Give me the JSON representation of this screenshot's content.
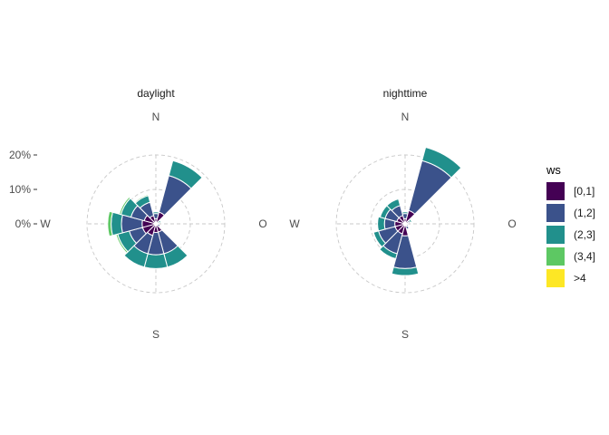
{
  "chart_data": {
    "type": "wind-rose (stacked polar bar)",
    "direction_labels": [
      "N",
      "O",
      "S",
      "W"
    ],
    "radial_ticks": [
      "0%",
      "10%",
      "20%"
    ],
    "radial_tick_values": [
      0,
      10,
      20
    ],
    "rmax": 20,
    "grid": "dashed polar",
    "legend": {
      "title": "ws",
      "position": "right",
      "entries": [
        "[0,1]",
        "(1,2]",
        "(2,3]",
        "(3,4]",
        ">4"
      ],
      "colors": [
        "#440154",
        "#3B528B",
        "#21908C",
        "#5DC863",
        "#FDE725"
      ]
    },
    "sector_centers_deg": [
      0,
      30,
      60,
      90,
      120,
      150,
      180,
      210,
      240,
      270,
      300,
      330
    ],
    "sector_width_deg": 30,
    "panels": [
      {
        "title": "daylight",
        "sectors": [
          [
            1.5,
            1.5,
            0.5,
            0,
            0
          ],
          [
            3.5,
            11.0,
            4.5,
            0,
            0
          ],
          [
            0.5,
            0.5,
            0.5,
            0,
            0
          ],
          [
            0.3,
            0.5,
            0,
            0,
            0
          ],
          [
            0.5,
            0.8,
            0,
            0,
            0
          ],
          [
            2.5,
            6.5,
            4.0,
            0,
            0
          ],
          [
            2.5,
            6.5,
            4.0,
            0,
            0
          ],
          [
            3.5,
            5.5,
            4.0,
            0,
            0
          ],
          [
            4.0,
            4.0,
            3.5,
            0.5,
            0
          ],
          [
            4.0,
            6.0,
            3.0,
            1.0,
            0
          ],
          [
            3.5,
            4.0,
            3.0,
            0.5,
            0
          ],
          [
            2.5,
            4.0,
            2.0,
            0.3,
            0
          ]
        ]
      },
      {
        "title": "nighttime",
        "sectors": [
          [
            1.5,
            1.5,
            0.5,
            0,
            0
          ],
          [
            4.0,
            15.0,
            4.0,
            0,
            0
          ],
          [
            1.0,
            0.5,
            0.5,
            0,
            0
          ],
          [
            0.5,
            0.3,
            0,
            0,
            0
          ],
          [
            0.5,
            0.5,
            0,
            0,
            0
          ],
          [
            0.8,
            0.8,
            0,
            0,
            0
          ],
          [
            3.5,
            9.5,
            2.0,
            0,
            0
          ],
          [
            3.0,
            6.0,
            1.5,
            0,
            0
          ],
          [
            3.0,
            5.0,
            1.5,
            0,
            0
          ],
          [
            3.0,
            3.0,
            2.0,
            0,
            0
          ],
          [
            2.5,
            3.5,
            1.5,
            0,
            0
          ],
          [
            2.5,
            3.0,
            2.0,
            0,
            0
          ]
        ]
      }
    ]
  }
}
